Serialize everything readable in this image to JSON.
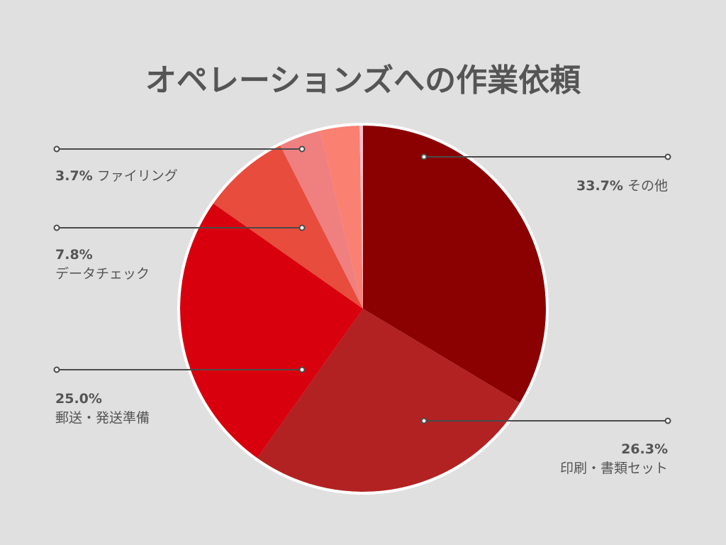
{
  "chart_data": {
    "type": "pie",
    "title": "オペレーションズへの作業依頼",
    "slices": [
      {
        "name": "その他",
        "value": 33.7,
        "label": "33.7%",
        "color": "#8b0000"
      },
      {
        "name": "印刷・書類セット",
        "value": 26.3,
        "label": "26.3%",
        "color": "#b22222"
      },
      {
        "name": "郵送・発送準備",
        "value": 25.0,
        "label": "25.0%",
        "color": "#d9000d"
      },
      {
        "name": "データチェック",
        "value": 7.8,
        "label": "7.8%",
        "color": "#e84c3d"
      },
      {
        "name": "ファイリング",
        "value": 3.7,
        "label": "3.7%",
        "color": "#f08080"
      },
      {
        "name": "",
        "value": 3.5,
        "label": "",
        "color": "#fa8072"
      },
      {
        "name": "",
        "value": 0.3,
        "label": "",
        "color": "#ffc0cb"
      }
    ],
    "background": "#e0e0e0",
    "slice_border": "#ffffff"
  }
}
